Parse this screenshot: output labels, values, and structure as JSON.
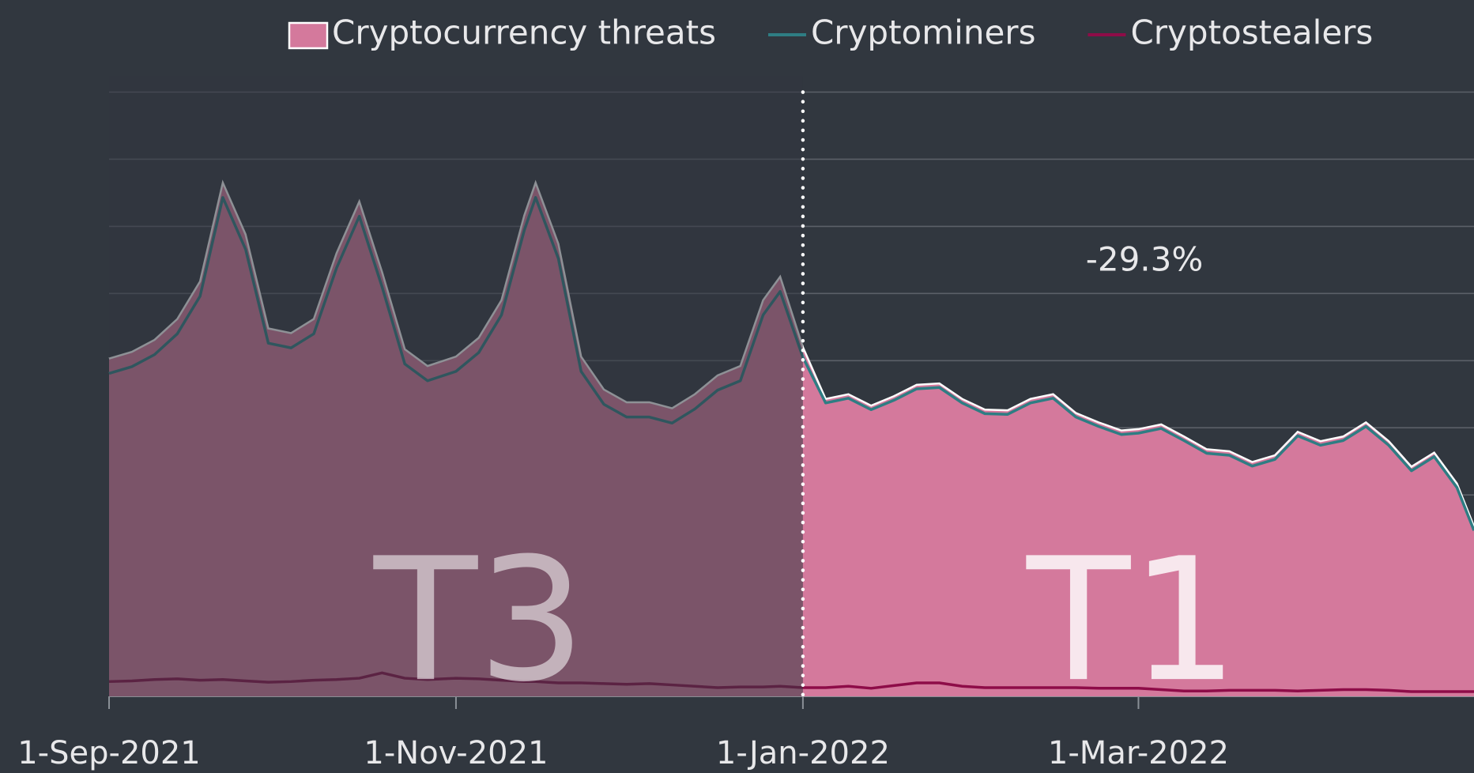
{
  "chart_data": {
    "type": "area",
    "x": [
      "2021-09-01",
      "2021-09-05",
      "2021-09-09",
      "2021-09-13",
      "2021-09-17",
      "2021-09-21",
      "2021-09-25",
      "2021-09-29",
      "2021-10-03",
      "2021-10-07",
      "2021-10-11",
      "2021-10-15",
      "2021-10-19",
      "2021-10-23",
      "2021-10-27",
      "2021-11-01",
      "2021-11-05",
      "2021-11-09",
      "2021-11-13",
      "2021-11-15",
      "2021-11-19",
      "2021-11-23",
      "2021-11-27",
      "2021-12-01",
      "2021-12-05",
      "2021-12-09",
      "2021-12-13",
      "2021-12-17",
      "2021-12-21",
      "2021-12-25",
      "2021-12-28",
      "2022-01-01",
      "2022-01-05",
      "2022-01-09",
      "2022-01-13",
      "2022-01-17",
      "2022-01-21",
      "2022-01-25",
      "2022-01-29",
      "2022-02-02",
      "2022-02-06",
      "2022-02-10",
      "2022-02-14",
      "2022-02-18",
      "2022-02-22",
      "2022-02-26",
      "2022-03-01",
      "2022-03-05",
      "2022-03-09",
      "2022-03-13",
      "2022-03-17",
      "2022-03-21",
      "2022-03-25",
      "2022-03-29",
      "2022-04-02",
      "2022-04-06",
      "2022-04-10",
      "2022-04-14",
      "2022-04-18",
      "2022-04-22",
      "2022-04-26",
      "2022-04-29"
    ],
    "series": [
      {
        "name": "Cryptocurrency threats",
        "color": "#d4799c",
        "style": "area",
        "values": [
          5.03,
          5.13,
          5.31,
          5.62,
          6.18,
          7.65,
          6.88,
          5.48,
          5.41,
          5.62,
          6.6,
          7.37,
          6.32,
          5.17,
          4.92,
          5.06,
          5.34,
          5.9,
          7.16,
          7.65,
          6.74,
          5.06,
          4.57,
          4.38,
          4.38,
          4.29,
          4.5,
          4.78,
          4.92,
          5.9,
          6.25,
          5.2,
          4.43,
          4.5,
          4.33,
          4.47,
          4.64,
          4.66,
          4.43,
          4.27,
          4.26,
          4.43,
          4.5,
          4.22,
          4.08,
          3.96,
          3.98,
          4.05,
          3.87,
          3.68,
          3.65,
          3.49,
          3.59,
          3.94,
          3.8,
          3.87,
          4.08,
          3.8,
          3.42,
          3.63,
          3.17,
          2.53
        ]
      },
      {
        "name": "Cryptominers",
        "color": "#2e7d83",
        "style": "line",
        "values": [
          4.81,
          4.91,
          5.09,
          5.4,
          5.96,
          7.43,
          6.66,
          5.26,
          5.19,
          5.4,
          6.38,
          7.15,
          6.1,
          4.95,
          4.7,
          4.84,
          5.12,
          5.68,
          6.94,
          7.43,
          6.52,
          4.84,
          4.35,
          4.16,
          4.16,
          4.07,
          4.28,
          4.56,
          4.7,
          5.68,
          6.03,
          5.05,
          4.37,
          4.44,
          4.27,
          4.41,
          4.58,
          4.6,
          4.37,
          4.21,
          4.2,
          4.37,
          4.44,
          4.16,
          4.02,
          3.9,
          3.92,
          3.99,
          3.81,
          3.62,
          3.59,
          3.43,
          3.53,
          3.88,
          3.74,
          3.81,
          4.02,
          3.74,
          3.36,
          3.57,
          3.11,
          2.47
        ]
      },
      {
        "name": "Cryptostealers",
        "color": "#8e0c48",
        "style": "line",
        "values": [
          0.22,
          0.23,
          0.25,
          0.26,
          0.24,
          0.25,
          0.23,
          0.21,
          0.22,
          0.24,
          0.25,
          0.27,
          0.35,
          0.27,
          0.25,
          0.27,
          0.26,
          0.24,
          0.22,
          0.22,
          0.2,
          0.2,
          0.19,
          0.18,
          0.19,
          0.17,
          0.15,
          0.13,
          0.14,
          0.14,
          0.15,
          0.13,
          0.13,
          0.15,
          0.12,
          0.16,
          0.2,
          0.2,
          0.15,
          0.13,
          0.13,
          0.13,
          0.13,
          0.13,
          0.12,
          0.12,
          0.12,
          0.1,
          0.08,
          0.08,
          0.09,
          0.09,
          0.09,
          0.08,
          0.09,
          0.1,
          0.1,
          0.09,
          0.07,
          0.07,
          0.07,
          0.07
        ]
      }
    ],
    "xlim": [
      "2021-09-01",
      "2022-04-29"
    ],
    "xticks": [
      {
        "value": "2021-09-01",
        "label": "1-Sep-2021"
      },
      {
        "value": "2021-11-01",
        "label": "1-Nov-2021"
      },
      {
        "value": "2022-01-01",
        "label": "1-Jan-2022"
      },
      {
        "value": "2022-03-01",
        "label": "1-Mar-2022"
      }
    ],
    "ylim": [
      0,
      9
    ],
    "yticks": [
      0,
      1,
      2,
      3,
      4,
      5,
      6,
      7,
      8,
      9
    ],
    "grid": true,
    "legend": "top",
    "divider": "2022-01-01",
    "annotations": {
      "left_period": "T3",
      "right_period": "T1",
      "change": "-29.3%"
    }
  }
}
